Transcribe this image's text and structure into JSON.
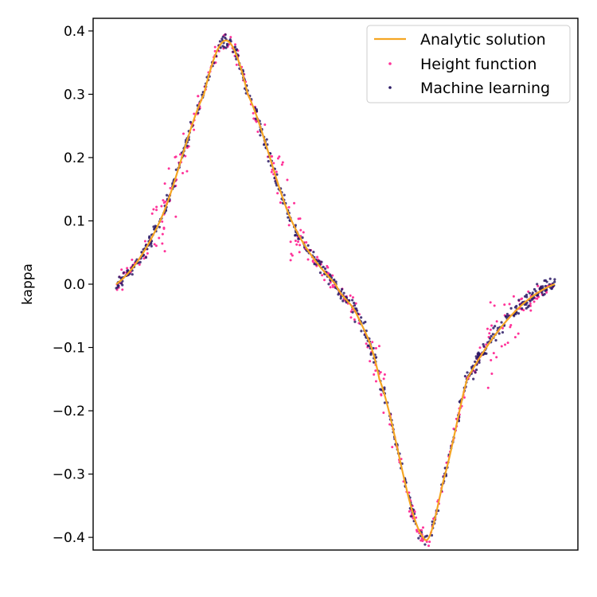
{
  "chart_data": {
    "type": "line",
    "ylabel": "kappa",
    "xlabel": "",
    "x_ticks_shown": false,
    "ylim": [
      -0.42,
      0.42
    ],
    "yticks": [
      0.4,
      0.3,
      0.2,
      0.1,
      0.0,
      -0.1,
      -0.2,
      -0.3,
      -0.4
    ],
    "ytick_labels": [
      "0.4",
      "0.3",
      "0.2",
      "0.1",
      "0.0",
      "−0.1",
      "−0.2",
      "−0.3",
      "−0.4"
    ],
    "grid": false,
    "legend_position": "top-right",
    "series": [
      {
        "name": "Analytic solution",
        "kind": "line",
        "color": "#f5a623",
        "x": [
          0.0,
          0.1,
          0.2,
          0.25,
          0.3,
          0.4,
          0.5,
          0.55,
          0.6,
          0.7,
          0.75,
          0.8,
          0.9,
          1.0
        ],
        "y": [
          0.0,
          0.1,
          0.3,
          0.385,
          0.3,
          0.1,
          0.0,
          -0.05,
          -0.15,
          -0.4,
          -0.3,
          -0.15,
          -0.05,
          0.0
        ]
      },
      {
        "name": "Height function",
        "kind": "scatter",
        "color": "#ff3399",
        "note_points": "noisy samples around analytic solution"
      },
      {
        "name": "Machine learning",
        "kind": "scatter",
        "color": "#2b1a66",
        "note_points": "tight samples around analytic solution"
      }
    ]
  }
}
